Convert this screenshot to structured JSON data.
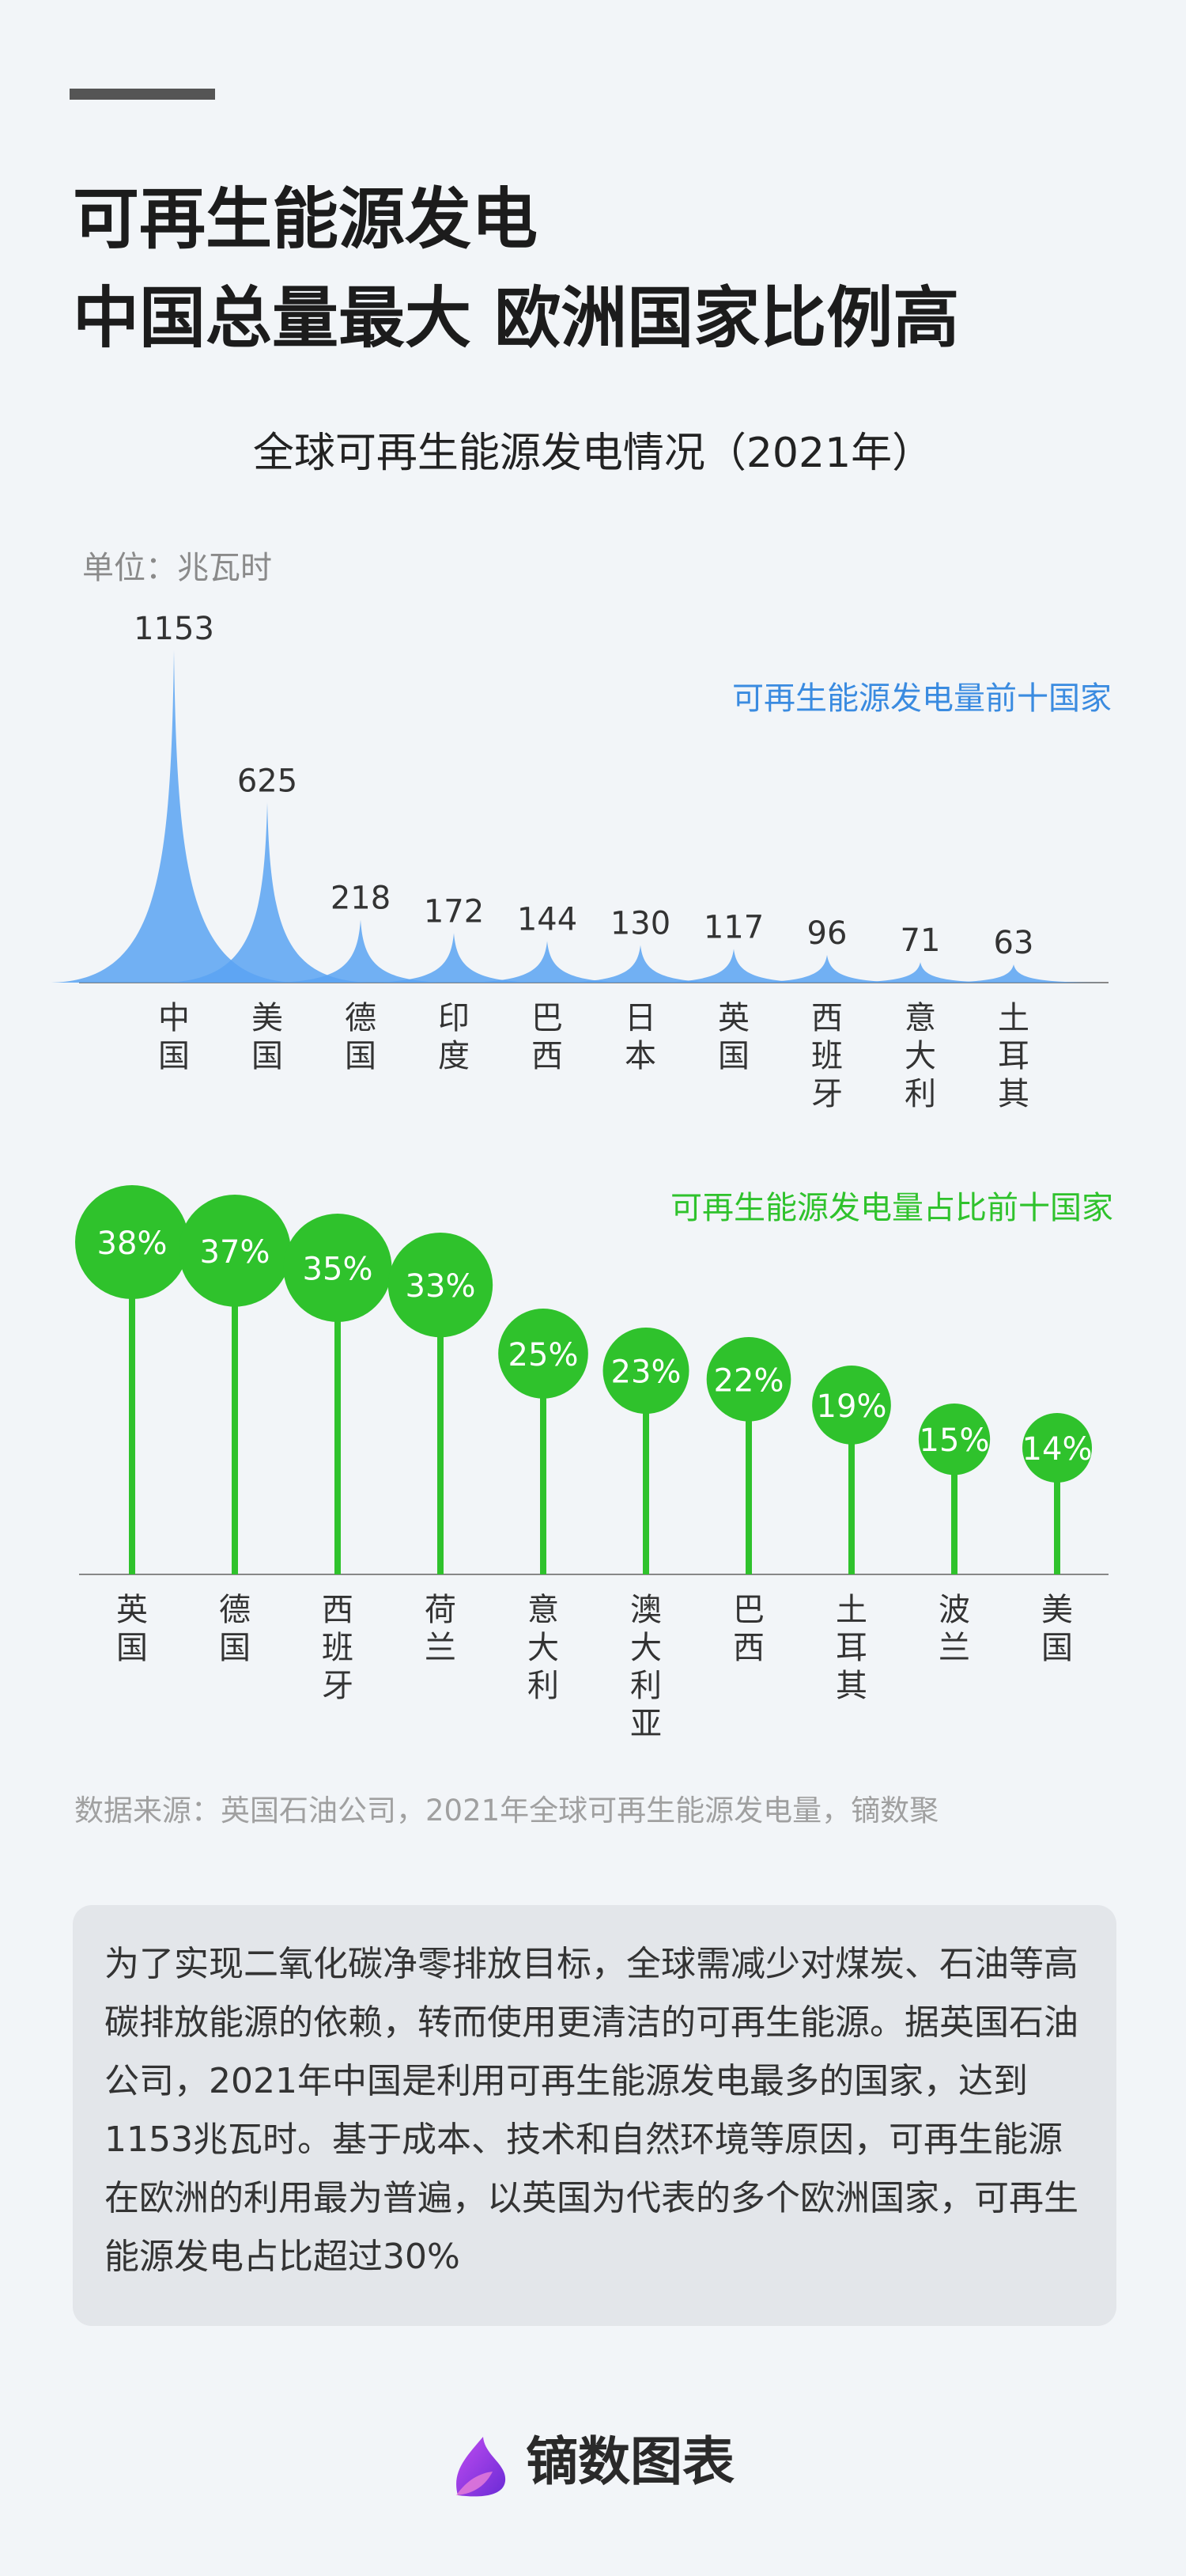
{
  "headline": [
    "可再生能源发电",
    "中国总量最大  欧洲国家比例高"
  ],
  "subtitle": "全球可再生能源发电情况（2021年）",
  "unit_label": "单位：兆瓦时",
  "source": "数据来源：英国石油公司，2021年全球可再生能源发电量，镝数聚",
  "note": "为了实现二氧化碳净零排放目标，全球需减少对煤炭、石油等高碳排放能源的依赖，转而使用更清洁的可再生能源。据英国石油公司，2021年中国是利用可再生能源发电最多的国家，达到1153兆瓦时。基于成本、技术和自然环境等原因，可再生能源在欧洲的利用最为普遍，以英国为代表的多个欧洲国家，可再生能源发电占比超过30%",
  "brand": "镝数图表",
  "colors": {
    "blue": "#5aa3f2",
    "blue_text": "#3a8be0",
    "green": "#2fc22c"
  },
  "chart_data": [
    {
      "type": "area",
      "legend": "可再生能源发电量前十国家",
      "categories": [
        "中国",
        "美国",
        "德国",
        "印度",
        "巴西",
        "日本",
        "英国",
        "西班牙",
        "意大利",
        "土耳其"
      ],
      "values": [
        1153,
        625,
        218,
        172,
        144,
        130,
        117,
        96,
        71,
        63
      ],
      "labels": [
        "1153",
        "625",
        "218",
        "172",
        "144",
        "130",
        "117",
        "96",
        "71",
        "63"
      ],
      "ylim": [
        0,
        1153
      ]
    },
    {
      "type": "bar",
      "legend": "可再生能源发电量占比前十国家",
      "categories": [
        "英国",
        "德国",
        "西班牙",
        "荷兰",
        "意大利",
        "澳大利亚",
        "巴西",
        "土耳其",
        "波兰",
        "美国"
      ],
      "values": [
        38,
        37,
        35,
        33,
        25,
        23,
        22,
        19,
        15,
        14
      ],
      "labels": [
        "38%",
        "37%",
        "35%",
        "33%",
        "25%",
        "23%",
        "22%",
        "19%",
        "15%",
        "14%"
      ],
      "ylim": [
        0,
        38
      ]
    }
  ]
}
